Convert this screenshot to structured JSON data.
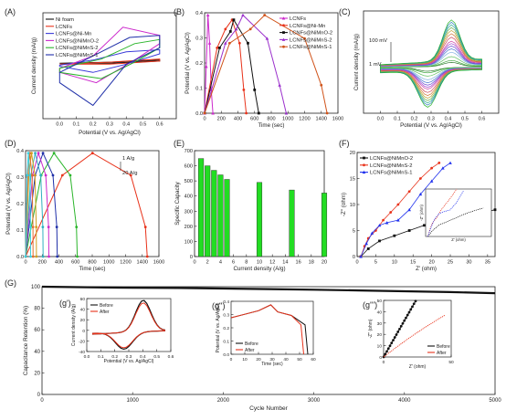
{
  "chart_data": [
    {
      "id": "A",
      "panel_label": "(A)",
      "type": "line",
      "xlabel": "Potential (V vs. Ag/AgCl)",
      "ylabel": "Current density (mA/g)",
      "xlim": [
        -0.1,
        0.7
      ],
      "xticks": [
        "0.0",
        "0.1",
        "0.2",
        "0.3",
        "0.4",
        "0.5",
        "0.6"
      ],
      "legend_position": "top-left",
      "series": [
        {
          "name": "Ni foam",
          "color": "#111111",
          "x": [
            0.0,
            0.3,
            0.6,
            0.6,
            0.3,
            0.0
          ],
          "y": [
            -1,
            0,
            2,
            1,
            -1,
            -1
          ]
        },
        {
          "name": "LCNFs",
          "color": "#e8321a",
          "x": [
            0.0,
            0.3,
            0.6,
            0.6,
            0.3,
            0.0
          ],
          "y": [
            -2,
            0,
            3,
            1,
            -2,
            -2
          ]
        },
        {
          "name": "LCNFs@Ni-Mn",
          "color": "#3a3ad8",
          "x": [
            0.0,
            0.2,
            0.4,
            0.6,
            0.6,
            0.4,
            0.2,
            0.0
          ],
          "y": [
            -3,
            2,
            10,
            12,
            8,
            -2,
            -10,
            -4
          ]
        },
        {
          "name": "LCNFs@NiMnO-2",
          "color": "#cc29cc",
          "x": [
            0.0,
            0.2,
            0.38,
            0.6,
            0.6,
            0.45,
            0.22,
            0.0
          ],
          "y": [
            -6,
            6,
            34,
            26,
            18,
            2,
            -20,
            -10
          ]
        },
        {
          "name": "LCNFs@NiMnS-2",
          "color": "#2ab52a",
          "x": [
            0.0,
            0.25,
            0.45,
            0.6,
            0.6,
            0.45,
            0.25,
            0.0
          ],
          "y": [
            -6,
            3,
            18,
            22,
            14,
            0,
            -16,
            -10
          ]
        },
        {
          "name": "LCNFs@NiMnS-1",
          "color": "#1f2fa8",
          "x": [
            0.0,
            0.2,
            0.42,
            0.6,
            0.6,
            0.4,
            0.2,
            0.0
          ],
          "y": [
            -10,
            6,
            24,
            26,
            14,
            -2,
            -42,
            -20
          ]
        }
      ]
    },
    {
      "id": "B",
      "panel_label": "(B)",
      "type": "line",
      "xlabel": "Time (sec)",
      "ylabel": "Potential (V vs. Ag/AgCl)",
      "xlim": [
        0,
        1600
      ],
      "ylim": [
        0,
        0.43
      ],
      "xticks": [
        "0",
        "200",
        "400",
        "600",
        "800",
        "1000",
        "1200",
        "1400",
        "1600"
      ],
      "yticks": [
        "0.0",
        "0.1",
        "0.2",
        "0.3",
        "0.4"
      ],
      "legend_position": "top-right",
      "series": [
        {
          "name": "LCNFs",
          "color": "#cc29cc",
          "x": [
            0,
            20,
            40,
            60,
            80,
            100
          ],
          "y": [
            0,
            0.2,
            0.42,
            0.3,
            0.1,
            0
          ]
        },
        {
          "name": "LCNFs@Ni-Mn",
          "color": "#e8321a",
          "x": [
            0,
            150,
            250,
            330,
            420,
            470,
            500
          ],
          "y": [
            0,
            0.28,
            0.36,
            0.4,
            0.3,
            0.1,
            0
          ]
        },
        {
          "name": "LCNFs@NiMnO-2",
          "color": "#111111",
          "x": [
            0,
            180,
            310,
            350,
            520,
            600,
            650
          ],
          "y": [
            0,
            0.28,
            0.35,
            0.4,
            0.3,
            0.1,
            0
          ]
        },
        {
          "name": "LCNFs@NiMnS-2",
          "color": "#9b30cc",
          "x": [
            0,
            250,
            380,
            460,
            750,
            900,
            980
          ],
          "y": [
            0,
            0.3,
            0.36,
            0.42,
            0.32,
            0.12,
            0
          ]
        },
        {
          "name": "LCNFs@NiMnS-1",
          "color": "#d0531a",
          "x": [
            0,
            300,
            550,
            720,
            1200,
            1400,
            1470
          ],
          "y": [
            0,
            0.3,
            0.36,
            0.42,
            0.32,
            0.12,
            0
          ]
        }
      ]
    },
    {
      "id": "C",
      "panel_label": "(C)",
      "type": "line",
      "xlabel": "Potential (V vs. Ag/AgCl)",
      "ylabel": "Current density (mA/g)",
      "xlim": [
        -0.1,
        0.7
      ],
      "xticks": [
        "0.0",
        "0.1",
        "0.2",
        "0.3",
        "0.4",
        "0.5",
        "0.6"
      ],
      "annotations": [
        "100 mV",
        "1 mV"
      ],
      "scan_rates_mV": [
        1,
        2,
        5,
        10,
        15,
        20,
        25,
        30,
        40,
        50,
        60,
        70,
        80,
        90,
        100
      ]
    },
    {
      "id": "D",
      "panel_label": "(D)",
      "type": "line",
      "xlabel": "Time (sec)",
      "ylabel": "Potential (V vs. Ag/AgCl)",
      "xlim": [
        0,
        1600
      ],
      "ylim": [
        0,
        0.43
      ],
      "xticks": [
        "0",
        "200",
        "400",
        "600",
        "800",
        "1000",
        "1200",
        "1400",
        "1600"
      ],
      "yticks": [
        "0.0",
        "0.1",
        "0.2",
        "0.3",
        "0.4"
      ],
      "annotations": [
        "1 A/g",
        "20 A/g"
      ],
      "current_densities_Ag": [
        1,
        2,
        3,
        4,
        5,
        10,
        15,
        20
      ],
      "discharge_end_sec": [
        1460,
        620,
        380,
        280,
        210,
        130,
        90,
        60
      ]
    },
    {
      "id": "E",
      "panel_label": "(E)",
      "type": "bar",
      "xlabel": "Current density (A/g)",
      "ylabel": "Specific Capacity",
      "xlim": [
        0,
        20
      ],
      "ylim": [
        0,
        700
      ],
      "xticks": [
        "0",
        "2",
        "4",
        "6",
        "8",
        "10",
        "12",
        "14",
        "16",
        "18",
        "20"
      ],
      "yticks": [
        "0",
        "100",
        "200",
        "300",
        "400",
        "500",
        "600",
        "700"
      ],
      "x": [
        1,
        2,
        3,
        4,
        5,
        10,
        15,
        20
      ],
      "values": [
        648,
        600,
        570,
        540,
        510,
        490,
        440,
        420
      ],
      "color": "#22dd22"
    },
    {
      "id": "F",
      "panel_label": "(F)",
      "type": "scatter",
      "xlabel": "Z' (ohm)",
      "ylabel": "-Z'' (ohm)",
      "xlim": [
        0,
        37
      ],
      "ylim": [
        0,
        20
      ],
      "xticks": [
        "0",
        "5",
        "10",
        "15",
        "20",
        "25",
        "30",
        "35"
      ],
      "yticks": [
        "0",
        "5",
        "10",
        "15",
        "20"
      ],
      "legend_position": "top-left",
      "inset": {
        "xlabel": "Z' (ohm)",
        "ylabel": "-Z'' (ohm)"
      },
      "series": [
        {
          "name": "LCNFs@NiMnO-2",
          "color": "#111111",
          "x": [
            1,
            3,
            6,
            10,
            14,
            18,
            22,
            26,
            30,
            34,
            37
          ],
          "y": [
            0,
            1.5,
            3,
            4,
            5,
            6,
            6.8,
            7.5,
            8,
            8.5,
            9
          ]
        },
        {
          "name": "LCNFs@NiMnS-2",
          "color": "#e8321a",
          "x": [
            1,
            2,
            3,
            5,
            7,
            9,
            11,
            14,
            17,
            20,
            22
          ],
          "y": [
            0,
            2,
            3.5,
            5,
            7,
            8.5,
            10,
            12.5,
            15,
            17,
            18
          ]
        },
        {
          "name": "LCNFs@NiMnS-1",
          "color": "#2233ee",
          "x": [
            1,
            2.5,
            4,
            6,
            8,
            11,
            14,
            17,
            20,
            23,
            25
          ],
          "y": [
            0,
            2.5,
            4.5,
            6,
            6.5,
            7,
            9,
            12,
            14.5,
            17,
            18
          ]
        }
      ]
    },
    {
      "id": "G",
      "panel_label": "(G)",
      "type": "line",
      "xlabel": "Cycle Number",
      "ylabel": "Capacitance Retention (%)",
      "xlim": [
        0,
        5000
      ],
      "ylim": [
        0,
        100
      ],
      "xticks": [
        "0",
        "1000",
        "2000",
        "3000",
        "4000",
        "5000"
      ],
      "yticks": [
        "0",
        "20",
        "40",
        "60",
        "80",
        "100"
      ],
      "x": [
        0,
        500,
        1000,
        1500,
        2000,
        2500,
        3000,
        3500,
        4000,
        4500,
        5000
      ],
      "y": [
        100,
        99.5,
        99,
        98.8,
        98.3,
        97.8,
        97.2,
        96.5,
        95.8,
        95,
        94
      ]
    },
    {
      "id": "g1",
      "panel_label": "(g')",
      "type": "line",
      "inset_of": "G",
      "xlabel": "Potential (V vs. Ag/AgCl)",
      "ylabel": "Current density (A/g)",
      "xticks": [
        "0.0",
        "0.1",
        "0.2",
        "0.3",
        "0.4",
        "0.5",
        "0.6"
      ],
      "yticks": [
        "-40",
        "-20",
        "0",
        "20",
        "40",
        "60"
      ],
      "legend": [
        "Before",
        "After"
      ],
      "legend_colors": [
        "#111111",
        "#e8321a"
      ],
      "legend_position": "top-left"
    },
    {
      "id": "g2",
      "panel_label": "(g'')",
      "type": "line",
      "inset_of": "G",
      "xlabel": "Time (sec)",
      "ylabel": "Potential (V vs. Ag/AgCl)",
      "xticks": [
        "0",
        "10",
        "20",
        "30",
        "40",
        "50",
        "60"
      ],
      "yticks": [
        "0.0",
        "0.1",
        "0.2",
        "0.3",
        "0.4"
      ],
      "legend": [
        "Before",
        "After"
      ],
      "legend_colors": [
        "#111111",
        "#e8321a"
      ],
      "legend_position": "bottom-left"
    },
    {
      "id": "g3",
      "panel_label": "(g''')",
      "type": "scatter",
      "inset_of": "G",
      "xlabel": "Z' (ohm)",
      "ylabel": "-Z'' (ohm)",
      "xticks": [
        "0",
        "50"
      ],
      "yticks": [
        "0",
        "10",
        "20",
        "30",
        "40",
        "50"
      ],
      "legend": [
        "Before",
        "After"
      ],
      "legend_colors": [
        "#111111",
        "#e8321a"
      ],
      "legend_position": "bottom-right"
    }
  ]
}
